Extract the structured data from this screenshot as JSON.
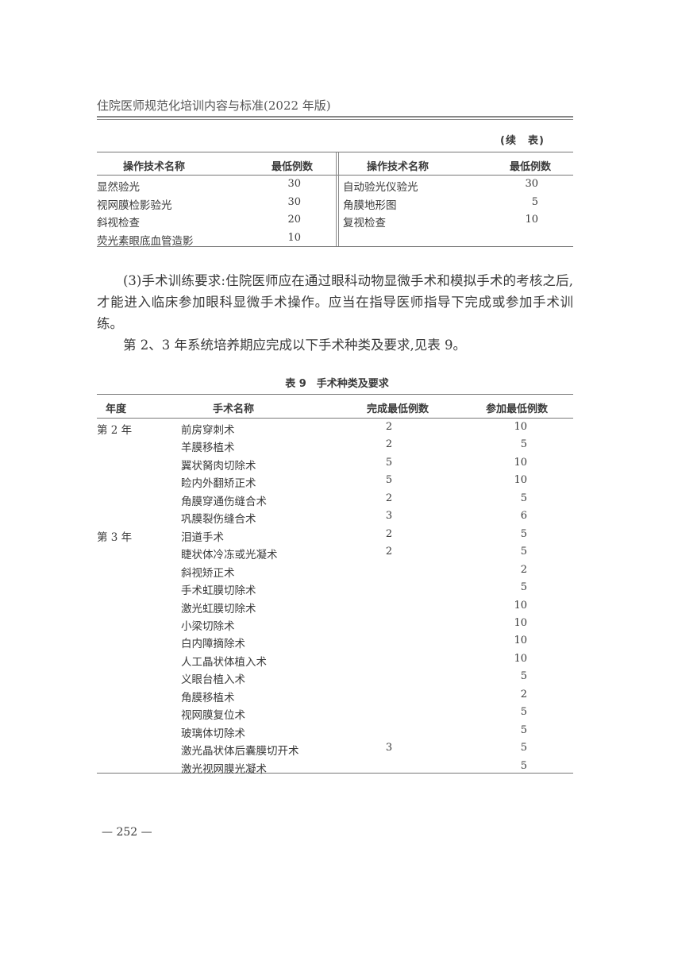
{
  "running_header": "住院医师规范化培训内容与标准(2022 年版)",
  "continued_label": "(续　表)",
  "table_cont": {
    "headers": [
      "操作技术名称",
      "最低例数",
      "操作技术名称",
      "最低例数"
    ],
    "left": [
      {
        "name": "显然验光",
        "count": "30"
      },
      {
        "name": "视网膜检影验光",
        "count": "30"
      },
      {
        "name": "斜视检查",
        "count": "20"
      },
      {
        "name": "荧光素眼底血管造影",
        "count": "10"
      }
    ],
    "right": [
      {
        "name": "自动验光仪验光",
        "count": "30"
      },
      {
        "name": "角膜地形图",
        "count": "5"
      },
      {
        "name": "复视检查",
        "count": "10"
      }
    ]
  },
  "paragraphs": [
    "(3)手术训练要求:住院医师应在通过眼科动物显微手术和模拟手术的考核之后,才能进入临床参加眼科显微手术操作。应当在指导医师指导下完成或参加手术训练。",
    "第 2、3 年系统培养期应完成以下手术种类及要求,见表 9。"
  ],
  "table9": {
    "caption": "表 9　手术种类及要求",
    "headers": [
      "年度",
      "手术名称",
      "完成最低例数",
      "参加最低例数"
    ],
    "rows": [
      {
        "year": "第 2 年",
        "name": "前房穿刺术",
        "complete": "2",
        "participate": "10"
      },
      {
        "year": "",
        "name": "羊膜移植术",
        "complete": "2",
        "participate": "5"
      },
      {
        "year": "",
        "name": "翼状胬肉切除术",
        "complete": "5",
        "participate": "10"
      },
      {
        "year": "",
        "name": "睑内外翻矫正术",
        "complete": "5",
        "participate": "10"
      },
      {
        "year": "",
        "name": "角膜穿通伤缝合术",
        "complete": "2",
        "participate": "5"
      },
      {
        "year": "",
        "name": "巩膜裂伤缝合术",
        "complete": "3",
        "participate": "6"
      },
      {
        "year": "第 3 年",
        "name": "泪道手术",
        "complete": "2",
        "participate": "5"
      },
      {
        "year": "",
        "name": "睫状体冷冻或光凝术",
        "complete": "2",
        "participate": "5"
      },
      {
        "year": "",
        "name": "斜视矫正术",
        "complete": "",
        "participate": "2"
      },
      {
        "year": "",
        "name": "手术虹膜切除术",
        "complete": "",
        "participate": "5"
      },
      {
        "year": "",
        "name": "激光虹膜切除术",
        "complete": "",
        "participate": "10"
      },
      {
        "year": "",
        "name": "小梁切除术",
        "complete": "",
        "participate": "10"
      },
      {
        "year": "",
        "name": "白内障摘除术",
        "complete": "",
        "participate": "10"
      },
      {
        "year": "",
        "name": "人工晶状体植入术",
        "complete": "",
        "participate": "10"
      },
      {
        "year": "",
        "name": "义眼台植入术",
        "complete": "",
        "participate": "5"
      },
      {
        "year": "",
        "name": "角膜移植术",
        "complete": "",
        "participate": "2"
      },
      {
        "year": "",
        "name": "视网膜复位术",
        "complete": "",
        "participate": "5"
      },
      {
        "year": "",
        "name": "玻璃体切除术",
        "complete": "",
        "participate": "5"
      },
      {
        "year": "",
        "name": "激光晶状体后囊膜切开术",
        "complete": "3",
        "participate": "5"
      },
      {
        "year": "",
        "name": "激光视网膜光凝术",
        "complete": "",
        "participate": "5"
      }
    ]
  },
  "page_number": "— 252 —"
}
